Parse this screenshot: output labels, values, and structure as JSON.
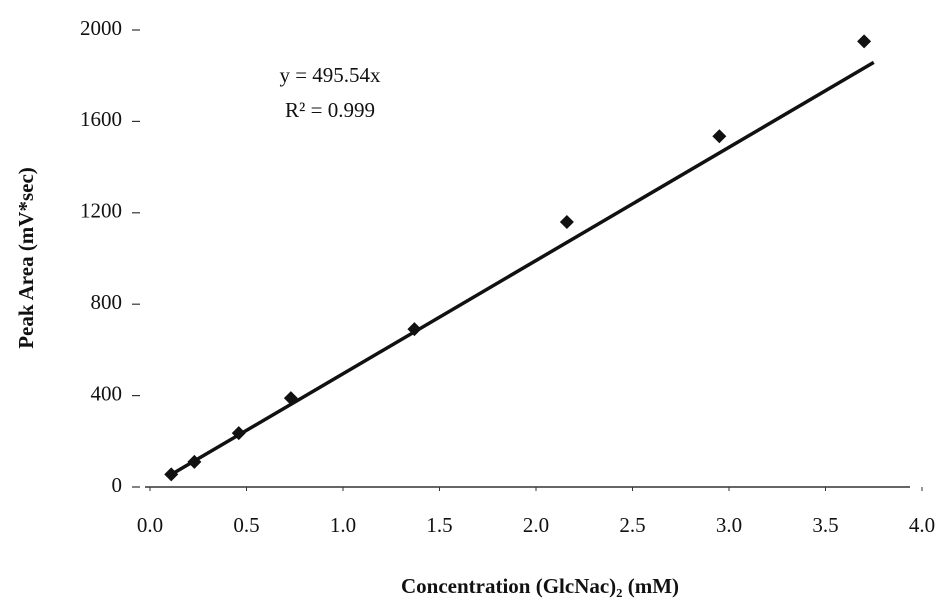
{
  "chart_data": {
    "type": "scatter",
    "xlabel": "Concentration (GlcNac)₂ (mM)",
    "ylabel": "Peak Area (mV*sec)",
    "annotations": [
      "y = 495.54x",
      "R² = 0.999"
    ],
    "x": [
      0.11,
      0.23,
      0.46,
      0.73,
      1.37,
      2.16,
      2.95,
      3.7
    ],
    "series": [
      {
        "color": "#111111",
        "values": [
          55,
          110,
          236,
          389,
          691,
          1160,
          1535,
          1950
        ]
      }
    ],
    "trendline": {
      "x": [
        0.11,
        3.75
      ],
      "values": [
        54.5,
        1858.3
      ],
      "color": "#111111"
    },
    "xlim": [
      0,
      4
    ],
    "ylim": [
      0,
      2000
    ],
    "xticks": [
      {
        "value": 0,
        "label": "0.0"
      },
      0.5,
      {
        "value": 1,
        "label": "1.0"
      },
      1.5,
      {
        "value": 2,
        "label": "2.0"
      },
      2.5,
      {
        "value": 3,
        "label": "3.0"
      },
      3.5,
      {
        "value": 4,
        "label": "4.0"
      }
    ],
    "yticks": [
      0,
      400,
      800,
      1200,
      1600,
      2000
    ],
    "grid": false
  }
}
